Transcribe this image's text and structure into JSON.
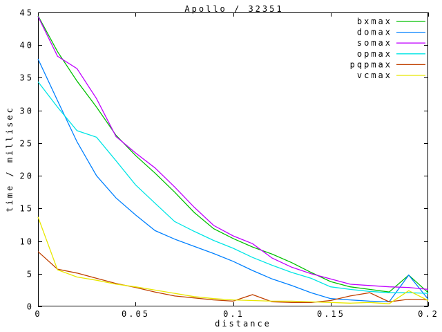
{
  "title": "Apollo / 32351",
  "axes": {
    "xlabel": "distance",
    "ylabel": "time / millisec"
  },
  "chart_data": {
    "type": "line",
    "title": "Apollo / 32351",
    "xlabel": "distance",
    "ylabel": "time / millisec",
    "xlim": [
      0,
      0.2
    ],
    "ylim": [
      0,
      45
    ],
    "grid": false,
    "legend_position": "top-right-inside",
    "xtick_labels": [
      "0",
      "0.05",
      "0.1",
      "0.15",
      "0.2"
    ],
    "xtick_values": [
      0,
      0.05,
      0.1,
      0.15,
      0.2
    ],
    "ytick_labels": [
      "0",
      "5",
      "10",
      "15",
      "20",
      "25",
      "30",
      "35",
      "40",
      "45"
    ],
    "ytick_values": [
      0,
      5,
      10,
      15,
      20,
      25,
      30,
      35,
      40,
      45
    ],
    "x": [
      0,
      0.01,
      0.02,
      0.03,
      0.04,
      0.05,
      0.06,
      0.07,
      0.08,
      0.09,
      0.1,
      0.11,
      0.12,
      0.13,
      0.14,
      0.15,
      0.16,
      0.17,
      0.18,
      0.19,
      0.2
    ],
    "series": [
      {
        "name": "bxmax",
        "color": "#00c000",
        "values": [
          44.5,
          39.0,
          34.5,
          30.5,
          26.2,
          23.1,
          20.4,
          17.5,
          14.4,
          11.9,
          10.4,
          9.1,
          8.0,
          6.7,
          5.2,
          3.8,
          3.0,
          2.6,
          2.2,
          4.8,
          2.1
        ]
      },
      {
        "name": "domax",
        "color": "#0080ff",
        "values": [
          37.9,
          31.5,
          25.2,
          20.0,
          16.6,
          14.0,
          11.6,
          10.3,
          9.2,
          8.1,
          6.9,
          5.5,
          4.2,
          3.2,
          2.1,
          1.2,
          1.0,
          0.8,
          0.7,
          4.8,
          1.1
        ]
      },
      {
        "name": "somax",
        "color": "#c000ff",
        "values": [
          44.4,
          38.3,
          36.4,
          31.8,
          26.0,
          23.5,
          21.2,
          18.3,
          15.2,
          12.4,
          10.8,
          9.6,
          7.4,
          6.0,
          5.0,
          4.2,
          3.4,
          3.2,
          3.0,
          2.9,
          2.6
        ]
      },
      {
        "name": "opmax",
        "color": "#00e5e5",
        "values": [
          34.4,
          30.5,
          26.9,
          25.9,
          22.3,
          18.6,
          15.8,
          13.0,
          11.5,
          10.1,
          8.9,
          7.5,
          6.3,
          5.2,
          4.3,
          3.0,
          2.6,
          2.3,
          2.1,
          2.1,
          2.0
        ]
      },
      {
        "name": "pqpmax",
        "color": "#c04000",
        "values": [
          8.4,
          5.7,
          5.1,
          4.3,
          3.5,
          2.9,
          2.2,
          1.6,
          1.3,
          1.0,
          0.8,
          1.8,
          0.7,
          0.6,
          0.6,
          0.9,
          1.6,
          2.1,
          0.7,
          1.1,
          1.0
        ]
      },
      {
        "name": "vcmax",
        "color": "#e8e800",
        "values": [
          13.7,
          5.6,
          4.5,
          4.0,
          3.4,
          3.0,
          2.5,
          2.0,
          1.5,
          1.2,
          1.0,
          0.9,
          0.8,
          0.8,
          0.7,
          0.6,
          0.5,
          0.6,
          0.4,
          2.4,
          0.9
        ]
      }
    ]
  }
}
